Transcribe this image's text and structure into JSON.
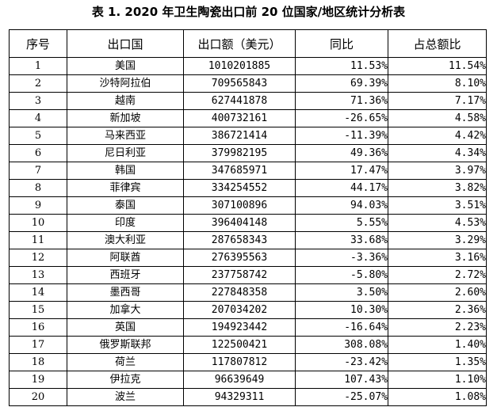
{
  "document": {
    "title": "表 1. 2020 年卫生陶瓷出口前 20 位国家/地区统计分析表"
  },
  "table": {
    "headers": [
      "序号",
      "出口国",
      "出口额（美元）",
      "同比",
      "占总额比"
    ],
    "rows": [
      [
        "1",
        "美国",
        "1010201885",
        "11.53%",
        "11.54%"
      ],
      [
        "2",
        "沙特阿拉伯",
        "709565843",
        "69.39%",
        "8.10%"
      ],
      [
        "3",
        "越南",
        "627441878",
        "71.36%",
        "7.17%"
      ],
      [
        "4",
        "新加坡",
        "400732161",
        "-26.65%",
        "4.58%"
      ],
      [
        "5",
        "马来西亚",
        "386721414",
        "-11.39%",
        "4.42%"
      ],
      [
        "6",
        "尼日利亚",
        "379982195",
        "49.36%",
        "4.34%"
      ],
      [
        "7",
        "韩国",
        "347685971",
        "17.47%",
        "3.97%"
      ],
      [
        "8",
        "菲律宾",
        "334254552",
        "44.17%",
        "3.82%"
      ],
      [
        "9",
        "泰国",
        "307100896",
        "94.03%",
        "3.51%"
      ],
      [
        "10",
        "印度",
        "396404148",
        "5.55%",
        "4.53%"
      ],
      [
        "11",
        "澳大利亚",
        "287658343",
        "33.68%",
        "3.29%"
      ],
      [
        "12",
        "阿联酋",
        "276395563",
        "-3.36%",
        "3.16%"
      ],
      [
        "13",
        "西班牙",
        "237758742",
        "-5.80%",
        "2.72%"
      ],
      [
        "14",
        "墨西哥",
        "227848358",
        "3.50%",
        "2.60%"
      ],
      [
        "15",
        "加拿大",
        "207034202",
        "10.30%",
        "2.36%"
      ],
      [
        "16",
        "英国",
        "194923442",
        "-16.64%",
        "2.23%"
      ],
      [
        "17",
        "俄罗斯联邦",
        "122500421",
        "308.08%",
        "1.40%"
      ],
      [
        "18",
        "荷兰",
        "117807812",
        "-23.42%",
        "1.35%"
      ],
      [
        "19",
        "伊拉克",
        "96639649",
        "107.43%",
        "1.10%"
      ],
      [
        "20",
        "波兰",
        "94329311",
        "-25.07%",
        "1.08%"
      ]
    ]
  }
}
